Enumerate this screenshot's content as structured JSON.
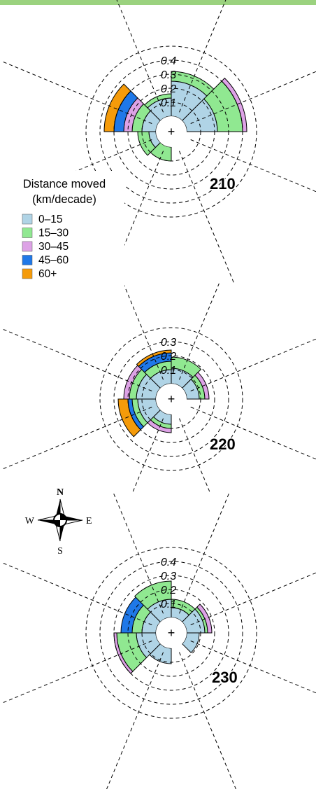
{
  "legend": {
    "title_line1": "Distance moved",
    "title_line2": "(km/decade)",
    "items": [
      {
        "label": "0–15",
        "color": "#b0d4e6"
      },
      {
        "label": "15–30",
        "color": "#90e891"
      },
      {
        "label": "30–45",
        "color": "#dda2e6"
      },
      {
        "label": "45–60",
        "color": "#1f78e8"
      },
      {
        "label": "60+",
        "color": "#f59b0a"
      }
    ]
  },
  "compass": {
    "n": "N",
    "s": "S",
    "e": "E",
    "w": "W"
  },
  "center_mark": "+",
  "chart_data": [
    {
      "type": "rose",
      "label": "210",
      "radial_ticks": [
        "0.1",
        "0.2",
        "0.3",
        "0.4"
      ],
      "rmax": 0.5,
      "sectors_deg_clockwise_from_north": [
        [
          0,
          45
        ],
        [
          45,
          90
        ],
        [
          90,
          135
        ],
        [
          135,
          180
        ],
        [
          180,
          225
        ],
        [
          225,
          270
        ],
        [
          270,
          315
        ],
        [
          315,
          360
        ]
      ],
      "series": [
        {
          "name": "0–15",
          "values": [
            0.25,
            0.22,
            0,
            0,
            0,
            0.05,
            0.1,
            0.13
          ]
        },
        {
          "name": "15–30",
          "values": [
            0.07,
            0.18,
            0,
            0,
            0.1,
            0.08,
            0.07,
            0.03
          ]
        },
        {
          "name": "30–45",
          "values": [
            0,
            0.03,
            0,
            0,
            0,
            0,
            0.06,
            0
          ]
        },
        {
          "name": "45–60",
          "values": [
            0,
            0,
            0,
            0,
            0,
            0,
            0.07,
            0
          ]
        },
        {
          "name": "60+",
          "values": [
            0,
            0,
            0,
            0,
            0,
            0,
            0.07,
            0
          ]
        }
      ]
    },
    {
      "type": "rose",
      "label": "220",
      "radial_ticks": [
        "0.1",
        "0.2",
        "0.3"
      ],
      "rmax": 0.4,
      "sectors_deg_clockwise_from_north": [
        [
          0,
          45
        ],
        [
          45,
          90
        ],
        [
          90,
          135
        ],
        [
          135,
          180
        ],
        [
          180,
          225
        ],
        [
          225,
          270
        ],
        [
          270,
          315
        ],
        [
          315,
          360
        ]
      ],
      "series": [
        {
          "name": "0–15",
          "values": [
            0.11,
            0.09,
            0,
            0,
            0.07,
            0.13,
            0.14,
            0.1
          ]
        },
        {
          "name": "15–30",
          "values": [
            0.08,
            0.04,
            0,
            0,
            0.03,
            0.04,
            0.05,
            0.06
          ]
        },
        {
          "name": "30–45",
          "values": [
            0,
            0.03,
            0,
            0,
            0.03,
            0,
            0.04,
            0
          ]
        },
        {
          "name": "45–60",
          "values": [
            0,
            0,
            0,
            0,
            0,
            0.03,
            0,
            0.06
          ]
        },
        {
          "name": "60+",
          "values": [
            0,
            0,
            0,
            0,
            0,
            0.07,
            0,
            0.02
          ]
        }
      ]
    },
    {
      "type": "rose",
      "label": "230",
      "radial_ticks": [
        "0.1",
        "0.2",
        "0.3",
        "0.4"
      ],
      "rmax": 0.5,
      "sectors_deg_clockwise_from_north": [
        [
          0,
          45
        ],
        [
          45,
          90
        ],
        [
          90,
          135
        ],
        [
          135,
          180
        ],
        [
          180,
          225
        ],
        [
          225,
          270
        ],
        [
          270,
          315
        ],
        [
          315,
          360
        ]
      ],
      "series": [
        {
          "name": "0–15",
          "values": [
            0.07,
            0.13,
            0.09,
            0,
            0.11,
            0.14,
            0.1,
            0.13
          ]
        },
        {
          "name": "15–30",
          "values": [
            0.06,
            0.02,
            0,
            0,
            0,
            0.14,
            0.07,
            0.13
          ]
        },
        {
          "name": "30–45",
          "values": [
            0,
            0.03,
            0,
            0,
            0,
            0.02,
            0,
            0
          ]
        },
        {
          "name": "45–60",
          "values": [
            0,
            0,
            0,
            0,
            0,
            0,
            0.08,
            0
          ]
        },
        {
          "name": "60+",
          "values": [
            0,
            0,
            0,
            0,
            0,
            0,
            0,
            0
          ]
        }
      ]
    }
  ]
}
